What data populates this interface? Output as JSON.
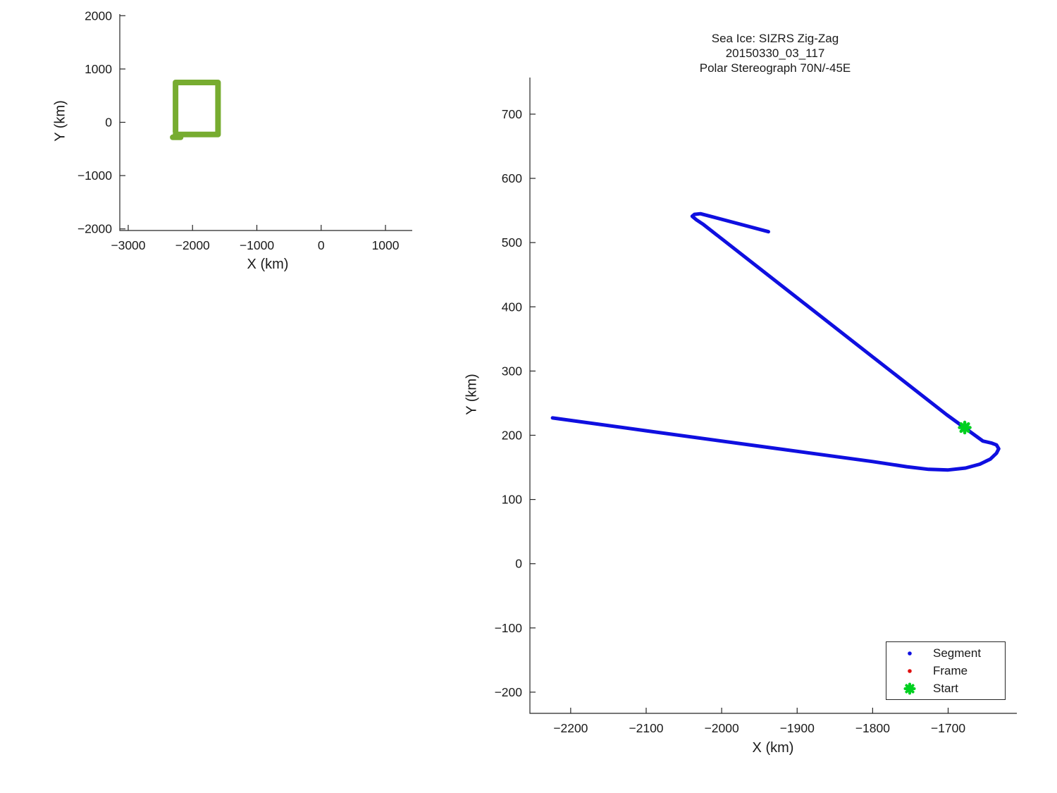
{
  "figure": {
    "background": "#ffffff",
    "axis_color": "#262626"
  },
  "chart_data": [
    {
      "id": "overview",
      "type": "line",
      "xlabel": "X (km)",
      "ylabel": "Y (km)",
      "xlim": [
        -3131,
        1416
      ],
      "ylim": [
        -2030,
        2030
      ],
      "xticks": [
        -3000,
        -2000,
        -1000,
        0,
        1000
      ],
      "yticks": [
        -2000,
        -1000,
        0,
        1000,
        2000
      ],
      "grid": false,
      "legend": null,
      "series": [
        {
          "name": "zoom-extent-box",
          "color": "#77ac30",
          "line_width": 8,
          "points": [
            [
              -2264,
              -180
            ],
            [
              -2264,
              747
            ],
            [
              -1604,
              747
            ],
            [
              -1604,
              -229
            ],
            [
              -2264,
              -229
            ]
          ]
        },
        {
          "name": "zoom-extent-box-stub",
          "color": "#77ac30",
          "line_width": 8,
          "points": [
            [
              -2308,
              -282
            ],
            [
              -2185,
              -282
            ]
          ]
        }
      ]
    },
    {
      "id": "track",
      "type": "line",
      "title_lines": [
        "Sea Ice: SIZRS Zig-Zag",
        "20150330_03_117",
        "Polar Stereograph 70N/-45E"
      ],
      "xlabel": "X (km)",
      "ylabel": "Y (km)",
      "xlim": [
        -2254,
        -1609
      ],
      "ylim": [
        -233,
        757
      ],
      "xticks": [
        -2200,
        -2100,
        -2000,
        -1900,
        -1800,
        -1700
      ],
      "yticks": [
        -200,
        -100,
        0,
        100,
        200,
        300,
        400,
        500,
        600,
        700
      ],
      "grid": false,
      "series": [
        {
          "name": "segment-track",
          "color": "#0f0fe0",
          "line_width": 5,
          "points": [
            [
              -2224,
              227
            ],
            [
              -2100,
              207
            ],
            [
              -1950,
              183
            ],
            [
              -1800,
              159
            ],
            [
              -1755,
              151
            ],
            [
              -1726,
              147
            ],
            [
              -1700,
              146
            ],
            [
              -1677,
              149
            ],
            [
              -1658,
              155
            ],
            [
              -1644,
              163
            ],
            [
              -1636,
              172
            ],
            [
              -1633,
              179
            ],
            [
              -1636,
              185
            ],
            [
              -1643,
              188
            ],
            [
              -1654,
              191
            ],
            [
              -1702,
              232
            ],
            [
              -1800,
              322
            ],
            [
              -1900,
              414
            ],
            [
              -2000,
              506
            ],
            [
              -2024,
              528
            ],
            [
              -2034,
              536
            ],
            [
              -2039,
              541
            ],
            [
              -2036,
              544
            ],
            [
              -2028,
              545
            ],
            [
              -2012,
              540
            ],
            [
              -1938,
              517
            ]
          ]
        }
      ],
      "start_marker": {
        "x": -1678,
        "y": 212,
        "color": "#00d020"
      },
      "legend": {
        "position": "lower-right",
        "entries": [
          {
            "label": "Segment",
            "marker": "dot",
            "color": "#0f0fe0"
          },
          {
            "label": "Frame",
            "marker": "dot",
            "color": "#e01010"
          },
          {
            "label": "Start",
            "marker": "asterisk",
            "color": "#00d020"
          }
        ]
      }
    }
  ]
}
